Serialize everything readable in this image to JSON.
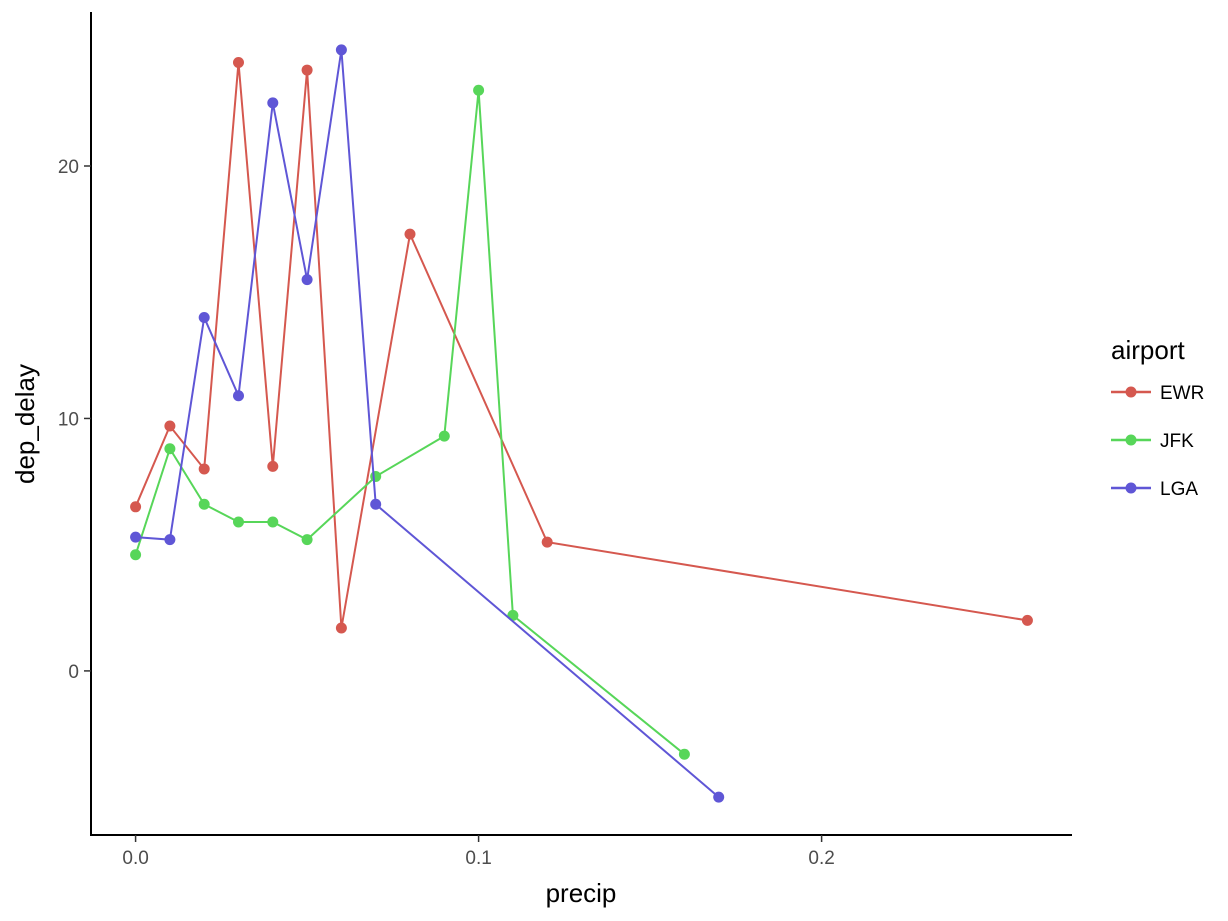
{
  "chart_data": {
    "type": "line",
    "xlabel": "precip",
    "ylabel": "dep_delay",
    "xlim": [
      -0.013,
      0.273
    ],
    "ylim": [
      -6.5,
      26.1
    ],
    "x_ticks": [
      0.0,
      0.1,
      0.2
    ],
    "x_tick_labels": [
      "0.0",
      "0.1",
      "0.2"
    ],
    "y_ticks": [
      0,
      10,
      20
    ],
    "y_tick_labels": [
      "0",
      "10",
      "20"
    ],
    "grid": false,
    "legend": {
      "title": "airport",
      "position": "right"
    },
    "series": [
      {
        "name": "EWR",
        "color": "#D5584F",
        "x": [
          0.0,
          0.01,
          0.02,
          0.03,
          0.04,
          0.05,
          0.06,
          0.08,
          0.12,
          0.26
        ],
        "y": [
          6.5,
          9.7,
          8.0,
          24.1,
          8.1,
          23.8,
          1.7,
          17.3,
          5.1,
          2.0
        ]
      },
      {
        "name": "JFK",
        "color": "#57D659",
        "x": [
          0.0,
          0.01,
          0.02,
          0.03,
          0.04,
          0.05,
          0.07,
          0.09,
          0.1,
          0.11,
          0.16
        ],
        "y": [
          4.6,
          8.8,
          6.6,
          5.9,
          5.9,
          5.2,
          7.7,
          9.3,
          23.0,
          2.2,
          -3.3
        ]
      },
      {
        "name": "LGA",
        "color": "#5F56D6",
        "x": [
          0.0,
          0.01,
          0.02,
          0.03,
          0.04,
          0.05,
          0.06,
          0.07,
          0.17
        ],
        "y": [
          5.3,
          5.2,
          14.0,
          10.9,
          22.5,
          15.5,
          24.6,
          6.6,
          -5.0
        ]
      }
    ]
  }
}
